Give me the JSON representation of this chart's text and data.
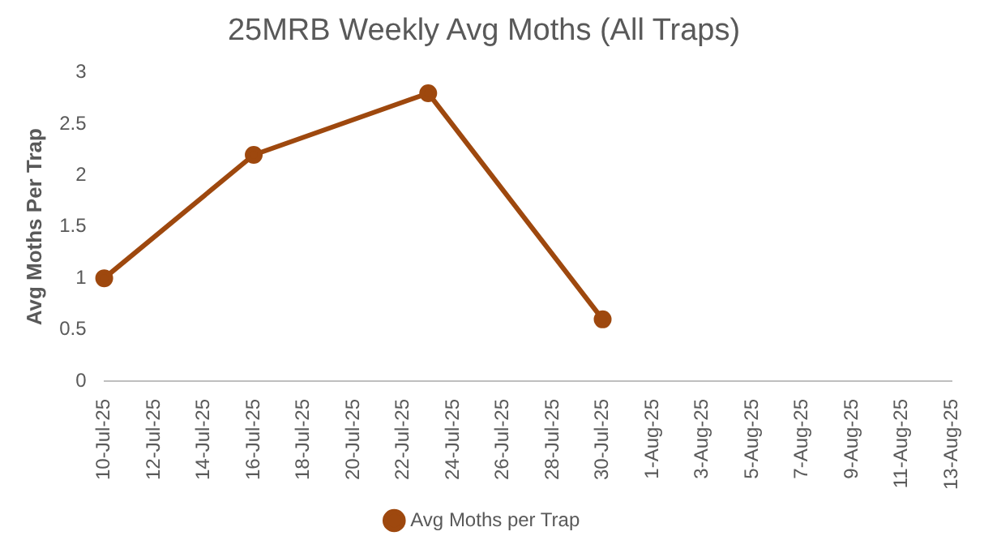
{
  "chart_data": {
    "type": "line",
    "title": "25MRB Weekly Avg Moths (All Traps)",
    "ylabel": "Avg Moths Per Trap",
    "x": [
      "--07-10",
      "--07-16",
      "--07-23",
      "--07-30"
    ],
    "series": [
      {
        "name": "Avg Moths per Trap",
        "color": "#9e480e",
        "values": [
          1,
          2.2,
          2.8,
          0.6
        ]
      }
    ],
    "xlim": [
      "--07-10",
      "--08-13"
    ],
    "xticks": [
      {
        "value": "--07-10",
        "label": "10-Jul-25"
      },
      {
        "value": "--07-12",
        "label": "12-Jul-25"
      },
      {
        "value": "--07-14",
        "label": "14-Jul-25"
      },
      {
        "value": "--07-16",
        "label": "16-Jul-25"
      },
      {
        "value": "--07-18",
        "label": "18-Jul-25"
      },
      {
        "value": "--07-20",
        "label": "20-Jul-25"
      },
      {
        "value": "--07-22",
        "label": "22-Jul-25"
      },
      {
        "value": "--07-24",
        "label": "24-Jul-25"
      },
      {
        "value": "--07-26",
        "label": "26-Jul-25"
      },
      {
        "value": "--07-28",
        "label": "28-Jul-25"
      },
      {
        "value": "--07-30",
        "label": "30-Jul-25"
      },
      {
        "value": "--08-01",
        "label": "1-Aug-25"
      },
      {
        "value": "--08-03",
        "label": "3-Aug-25"
      },
      {
        "value": "--08-05",
        "label": "5-Aug-25"
      },
      {
        "value": "--08-07",
        "label": "7-Aug-25"
      },
      {
        "value": "--08-09",
        "label": "9-Aug-25"
      },
      {
        "value": "--08-11",
        "label": "11-Aug-25"
      },
      {
        "value": "--08-13",
        "label": "13-Aug-25"
      }
    ],
    "ylim": [
      0,
      3
    ],
    "yticks": [
      0,
      0.5,
      1,
      1.5,
      2,
      2.5,
      3
    ],
    "grid": false,
    "legend": "bottom",
    "marker": "circle",
    "line_style": "solid"
  }
}
